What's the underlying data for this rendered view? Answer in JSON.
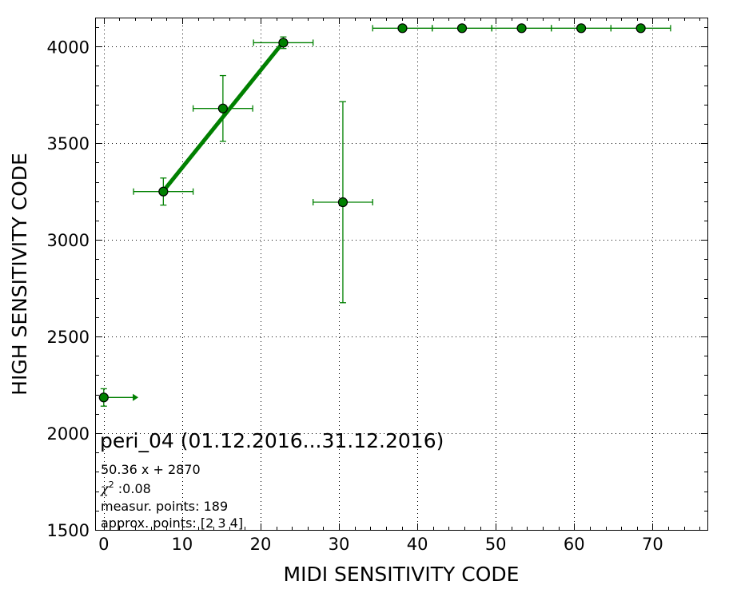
{
  "chart_data": {
    "type": "scatter",
    "title": "",
    "xlabel": "MIDI SENSITIVITY CODE",
    "ylabel": "HIGH SENSITIVITY CODE",
    "xlim": [
      -1,
      77
    ],
    "ylim": [
      1500,
      4150
    ],
    "xticks": [
      0,
      10,
      20,
      30,
      40,
      50,
      60,
      70
    ],
    "yticks": [
      1500,
      2000,
      2500,
      3000,
      3500,
      4000
    ],
    "xtick_labels": [
      "0",
      "10",
      "20",
      "30",
      "40",
      "50",
      "60",
      "70"
    ],
    "ytick_labels": [
      "1500",
      "2000",
      "2500",
      "3000",
      "3500",
      "4000"
    ],
    "grid": true,
    "point_color": "#008000",
    "fit_color": "#008000",
    "points": [
      {
        "x": 0.0,
        "y": 2185,
        "xerr_low": 0,
        "xerr_high": 3.8,
        "yerr": 45,
        "x_arrow": true
      },
      {
        "x": 7.6,
        "y": 3250,
        "xerr": 3.8,
        "yerr": 70
      },
      {
        "x": 15.2,
        "y": 3680,
        "xerr": 3.8,
        "yerr": 170
      },
      {
        "x": 22.9,
        "y": 4020,
        "xerr": 3.8,
        "yerr": 30
      },
      {
        "x": 30.5,
        "y": 3195,
        "xerr": 3.8,
        "yerr": 520
      },
      {
        "x": 38.1,
        "y": 4095,
        "xerr": 3.8,
        "yerr": 0
      },
      {
        "x": 45.7,
        "y": 4095,
        "xerr": 3.8,
        "yerr": 0
      },
      {
        "x": 53.3,
        "y": 4095,
        "xerr": 3.8,
        "yerr": 0
      },
      {
        "x": 60.9,
        "y": 4095,
        "xerr": 3.8,
        "yerr": 0
      },
      {
        "x": 68.5,
        "y": 4095,
        "xerr": 3.8,
        "yerr": 0
      }
    ],
    "fit": {
      "slope": 50.36,
      "intercept": 2870,
      "x_from": 7.6,
      "x_to": 22.9
    },
    "annotations": {
      "heading": "peri_04 (01.12.2016...31.12.2016)",
      "equation": "50.36 x + 2870",
      "chi_symbol": "χ",
      "chi_sup": "2",
      "chi_value": " :0.08",
      "measur_points": "measur. points: 189",
      "approx_points": "approx. points: [2 3 4]"
    }
  }
}
